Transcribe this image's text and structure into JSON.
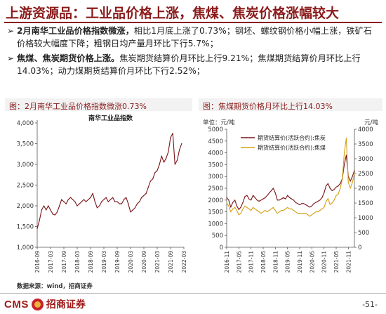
{
  "title": "上游资源品：工业品价格上涨，焦煤、焦炭价格涨幅较大",
  "bullets": [
    {
      "arrow": "➢",
      "bold": "2月南华工业品价格指数微涨，",
      "rest": "相比1月底上涨了0.73%；钢坯、螺纹钢价格小幅上涨，铁矿石价格较大幅度下降；粗钢日均产量月环比下行5.7%；"
    },
    {
      "arrow": "➢",
      "bold": "焦煤、焦炭期货价格上涨。",
      "rest": "焦炭期货结算价月环比上行9.21%；焦煤期货结算价月环比上行14.03%；动力煤期货结算价月环比下行2.52%；"
    }
  ],
  "left_panel": {
    "title": "图：2月南华工业品价格指数微涨0.73%"
  },
  "right_panel": {
    "title": "图：焦煤期货价格月环比上行14.03%"
  },
  "source": "数据来源：wind，招商证券",
  "footer": {
    "logo_text": "CMS",
    "logo_cn": "招商证券",
    "page": "-51-"
  },
  "chart_data": [
    {
      "type": "line",
      "title": "南华工业品指数",
      "ylim": [
        1000,
        4000
      ],
      "yticks": [
        "1,000",
        "1,500",
        "2,000",
        "2,500",
        "3,000",
        "3,500",
        "4,000"
      ],
      "xticks": [
        "2016-09",
        "2017-03",
        "2017-09",
        "2018-03",
        "2018-09",
        "2019-03",
        "2019-09",
        "2020-03",
        "2020-09",
        "2021-03",
        "2021-09",
        "2022-03"
      ],
      "x_range": [
        "2016-09",
        "2022-03"
      ],
      "series": [
        {
          "color": "#7a1218",
          "x": [
            "2016-09",
            "2016-10",
            "2016-11",
            "2016-12",
            "2017-01",
            "2017-02",
            "2017-03",
            "2017-04",
            "2017-05",
            "2017-06",
            "2017-07",
            "2017-08",
            "2017-09",
            "2017-10",
            "2017-11",
            "2017-12",
            "2018-01",
            "2018-02",
            "2018-03",
            "2018-04",
            "2018-05",
            "2018-06",
            "2018-07",
            "2018-08",
            "2018-09",
            "2018-10",
            "2018-11",
            "2018-12",
            "2019-01",
            "2019-02",
            "2019-03",
            "2019-04",
            "2019-05",
            "2019-06",
            "2019-07",
            "2019-08",
            "2019-09",
            "2019-10",
            "2019-11",
            "2019-12",
            "2020-01",
            "2020-02",
            "2020-03",
            "2020-04",
            "2020-05",
            "2020-06",
            "2020-07",
            "2020-08",
            "2020-09",
            "2020-10",
            "2020-11",
            "2020-12",
            "2021-01",
            "2021-02",
            "2021-03",
            "2021-04",
            "2021-05",
            "2021-06",
            "2021-07",
            "2021-08",
            "2021-09",
            "2021-10",
            "2021-11",
            "2021-12",
            "2022-01",
            "2022-02"
          ],
          "values": [
            1450,
            1650,
            1900,
            2000,
            1900,
            2000,
            1900,
            1800,
            1780,
            1850,
            2000,
            2150,
            2100,
            2050,
            2150,
            2200,
            2150,
            2100,
            2000,
            2050,
            2100,
            2150,
            2100,
            2150,
            2200,
            2300,
            2100,
            1950,
            2000,
            2100,
            2150,
            2200,
            2100,
            2150,
            2200,
            2100,
            2100,
            2050,
            2050,
            2150,
            2200,
            2050,
            1850,
            1900,
            1950,
            2050,
            2100,
            2200,
            2250,
            2300,
            2450,
            2600,
            2650,
            2800,
            2850,
            3000,
            3200,
            3050,
            3150,
            3300,
            3650,
            3750,
            3000,
            3100,
            3350,
            3500
          ]
        }
      ]
    },
    {
      "type": "line",
      "ylabel_left": "单位：元/吨",
      "ylabel_right": "元/吨",
      "ylim_left": [
        0,
        5000
      ],
      "ylim_right": [
        0,
        4000
      ],
      "yticks_left": [
        "0",
        "500",
        "1000",
        "1500",
        "2000",
        "2500",
        "3000",
        "3500",
        "4000",
        "4500",
        "5000"
      ],
      "yticks_right": [
        "0",
        "500",
        "1000",
        "1500",
        "2000",
        "2500",
        "3000",
        "3500",
        "4000"
      ],
      "xticks": [
        "2016-11",
        "2017-05",
        "2017-11",
        "2018-05",
        "2018-11",
        "2019-05",
        "2019-11",
        "2020-05",
        "2020-11",
        "2021-05",
        "2021-11"
      ],
      "x_range": [
        "2016-11",
        "2022-02"
      ],
      "series": [
        {
          "name": "期货结算价(活跃合约):焦炭",
          "axis": "left",
          "color": "#7a1218",
          "x": [
            "2016-11",
            "2016-12",
            "2017-01",
            "2017-02",
            "2017-03",
            "2017-04",
            "2017-05",
            "2017-06",
            "2017-07",
            "2017-08",
            "2017-09",
            "2017-10",
            "2017-11",
            "2017-12",
            "2018-01",
            "2018-02",
            "2018-03",
            "2018-04",
            "2018-05",
            "2018-06",
            "2018-07",
            "2018-08",
            "2018-09",
            "2018-10",
            "2018-11",
            "2018-12",
            "2019-01",
            "2019-02",
            "2019-03",
            "2019-04",
            "2019-05",
            "2019-06",
            "2019-07",
            "2019-08",
            "2019-09",
            "2019-10",
            "2019-11",
            "2019-12",
            "2020-01",
            "2020-02",
            "2020-03",
            "2020-04",
            "2020-05",
            "2020-06",
            "2020-07",
            "2020-08",
            "2020-09",
            "2020-10",
            "2020-11",
            "2020-12",
            "2021-01",
            "2021-02",
            "2021-03",
            "2021-04",
            "2021-05",
            "2021-06",
            "2021-07",
            "2021-08",
            "2021-09",
            "2021-10",
            "2021-11",
            "2021-12",
            "2022-01",
            "2022-02"
          ],
          "values": [
            2100,
            2000,
            1700,
            1900,
            2000,
            1750,
            1600,
            1700,
            1900,
            2150,
            2200,
            2050,
            2000,
            2200,
            2100,
            2000,
            1950,
            2000,
            2050,
            2100,
            2200,
            2300,
            2400,
            2500,
            2300,
            2000,
            2000,
            2050,
            2100,
            2050,
            2200,
            2100,
            2050,
            2000,
            1900,
            1850,
            1800,
            1850,
            1850,
            1800,
            1750,
            1700,
            1750,
            1850,
            1900,
            1950,
            2000,
            2100,
            2300,
            2600,
            2700,
            2500,
            2400,
            2450,
            2550,
            2600,
            2700,
            2900,
            3500,
            3900,
            3000,
            2800,
            3000,
            3250
          ]
        },
        {
          "name": "期货结算价(活跃合约):焦煤",
          "axis": "right",
          "color": "#d4a017",
          "x": [
            "2016-11",
            "2016-12",
            "2017-01",
            "2017-02",
            "2017-03",
            "2017-04",
            "2017-05",
            "2017-06",
            "2017-07",
            "2017-08",
            "2017-09",
            "2017-10",
            "2017-11",
            "2017-12",
            "2018-01",
            "2018-02",
            "2018-03",
            "2018-04",
            "2018-05",
            "2018-06",
            "2018-07",
            "2018-08",
            "2018-09",
            "2018-10",
            "2018-11",
            "2018-12",
            "2019-01",
            "2019-02",
            "2019-03",
            "2019-04",
            "2019-05",
            "2019-06",
            "2019-07",
            "2019-08",
            "2019-09",
            "2019-10",
            "2019-11",
            "2019-12",
            "2020-01",
            "2020-02",
            "2020-03",
            "2020-04",
            "2020-05",
            "2020-06",
            "2020-07",
            "2020-08",
            "2020-09",
            "2020-10",
            "2020-11",
            "2020-12",
            "2021-01",
            "2021-02",
            "2021-03",
            "2021-04",
            "2021-05",
            "2021-06",
            "2021-07",
            "2021-08",
            "2021-09",
            "2021-10",
            "2021-11",
            "2021-12",
            "2022-01",
            "2022-02"
          ],
          "values": [
            1500,
            1400,
            1200,
            1300,
            1350,
            1250,
            1100,
            1150,
            1300,
            1400,
            1350,
            1300,
            1250,
            1350,
            1300,
            1250,
            1200,
            1150,
            1200,
            1250,
            1200,
            1250,
            1300,
            1350,
            1250,
            1150,
            1200,
            1250,
            1250,
            1300,
            1350,
            1300,
            1300,
            1250,
            1200,
            1150,
            1150,
            1150,
            1150,
            1150,
            1100,
            1050,
            1100,
            1150,
            1200,
            1200,
            1250,
            1300,
            1350,
            1550,
            1650,
            1450,
            1500,
            1600,
            1750,
            1800,
            2000,
            2300,
            3200,
            3700,
            2200,
            2000,
            2200,
            2500
          ]
        }
      ]
    }
  ]
}
